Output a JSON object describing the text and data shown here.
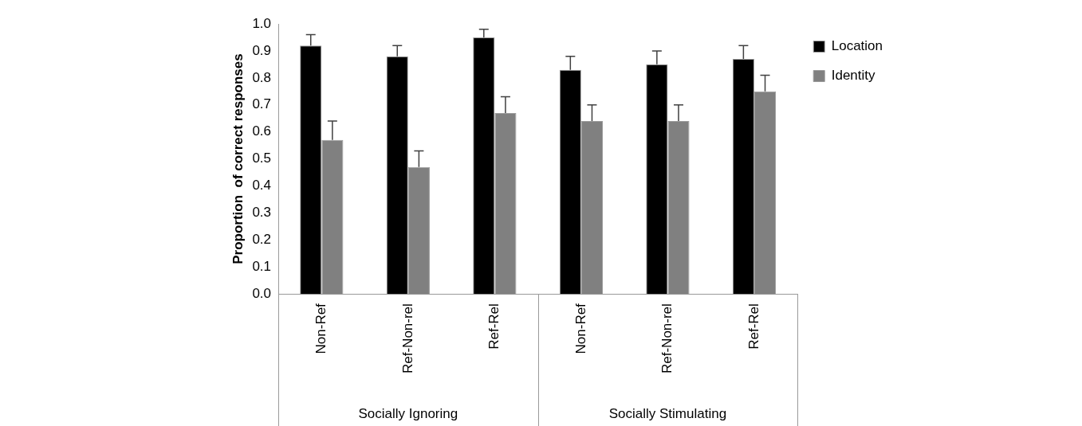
{
  "chart_data": {
    "type": "bar",
    "ylabel": "Proportion  of correct responses",
    "categories": [
      "Non-Ref",
      "Ref-Non-rel",
      "Ref-Rel",
      "Non-Ref",
      "Ref-Non-rel",
      "Ref-Rel"
    ],
    "series": [
      {
        "name": "Location",
        "color": "#000000",
        "values": [
          0.92,
          0.88,
          0.95,
          0.83,
          0.85,
          0.87
        ],
        "errors": [
          [
            0.92,
            0.96
          ],
          [
            0.88,
            0.92
          ],
          [
            0.95,
            0.98
          ],
          [
            0.83,
            0.88
          ],
          [
            0.85,
            0.9
          ],
          [
            0.87,
            0.92
          ]
        ]
      },
      {
        "name": "Identity",
        "color": "#808080",
        "values": [
          0.57,
          0.47,
          0.67,
          0.64,
          0.64,
          0.75
        ],
        "errors": [
          [
            0.57,
            0.64
          ],
          [
            0.47,
            0.53
          ],
          [
            0.67,
            0.73
          ],
          [
            0.64,
            0.7
          ],
          [
            0.64,
            0.7
          ],
          [
            0.75,
            0.81
          ]
        ]
      }
    ],
    "annotations": [
      "Socially Ignoring",
      "Socially Stimulating"
    ],
    "ylim": [
      0,
      1
    ],
    "yticks": [
      {
        "value": 0,
        "label": "0.0"
      },
      {
        "value": 0.1,
        "label": "0.1"
      },
      {
        "value": 0.2,
        "label": "0.2"
      },
      {
        "value": 0.3,
        "label": "0.3"
      },
      {
        "value": 0.4,
        "label": "0.4"
      },
      {
        "value": 0.5,
        "label": "0.5"
      },
      {
        "value": 0.6,
        "label": "0.6"
      },
      {
        "value": 0.7,
        "label": "0.7"
      },
      {
        "value": 0.8,
        "label": "0.8"
      },
      {
        "value": 0.9,
        "label": "0.9"
      },
      {
        "value": 1,
        "label": "1.0"
      }
    ],
    "grid": false,
    "legend": "top right"
  }
}
